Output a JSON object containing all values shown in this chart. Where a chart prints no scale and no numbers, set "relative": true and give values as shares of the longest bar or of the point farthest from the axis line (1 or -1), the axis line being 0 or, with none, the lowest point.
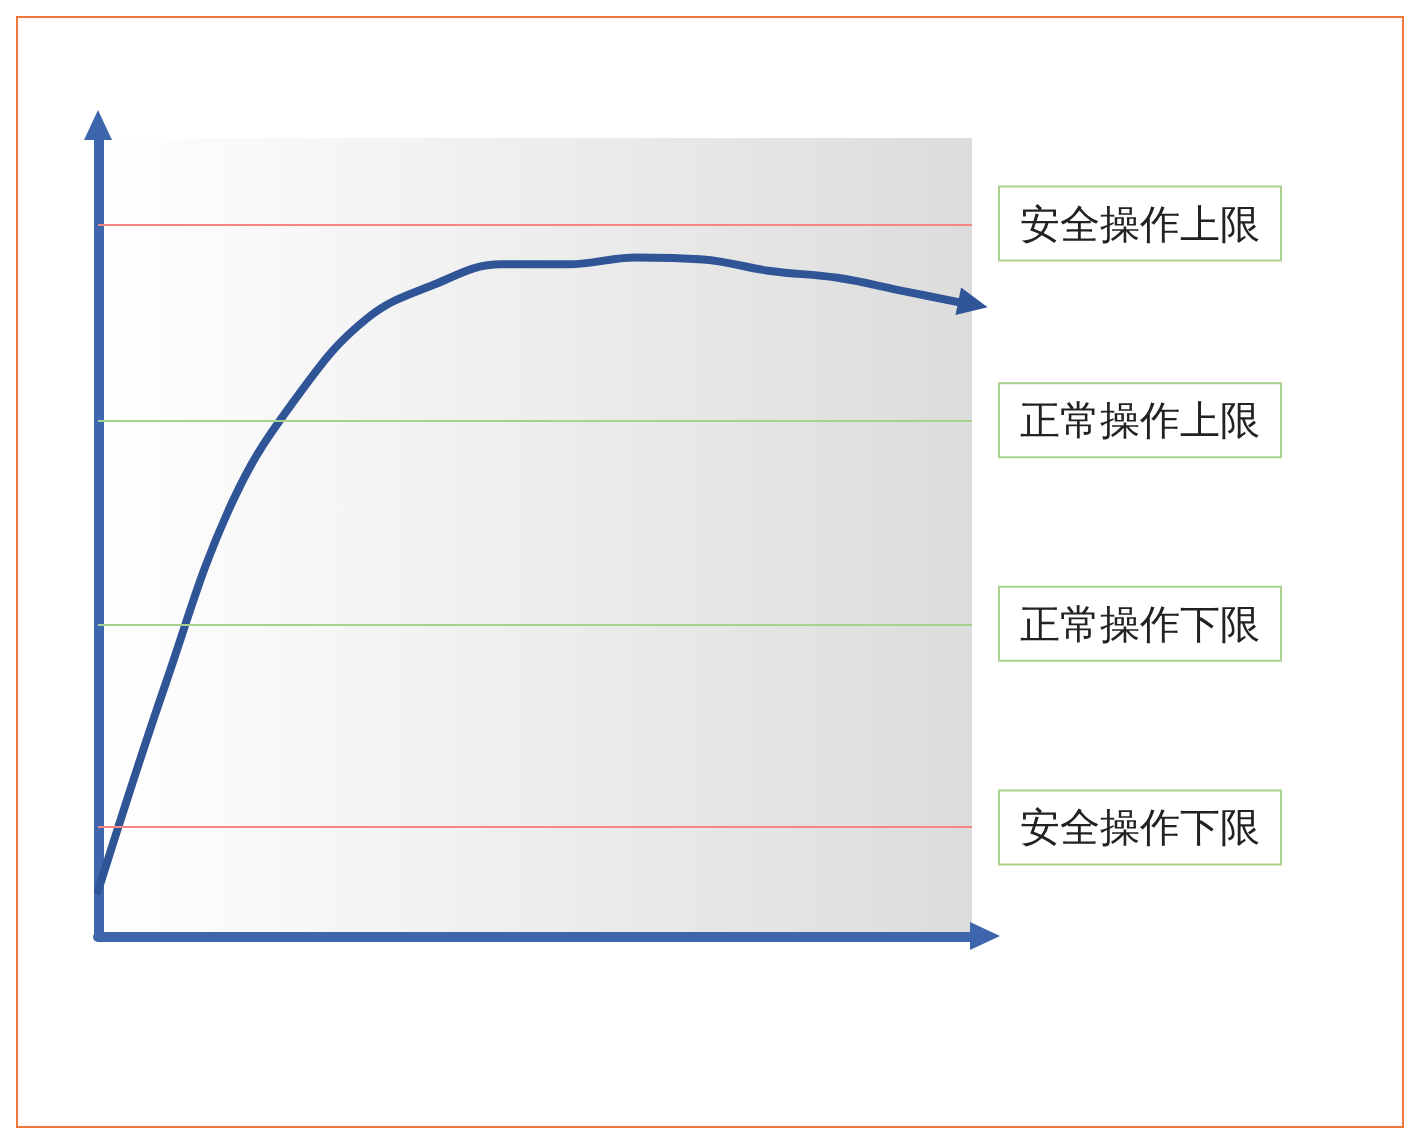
{
  "chart_data": {
    "type": "line",
    "relative": true,
    "categories": [
      null,
      null,
      null,
      null,
      null,
      null,
      null,
      null,
      null,
      null,
      null,
      null,
      null,
      null
    ],
    "series": [
      {
        "color": "#2f5597",
        "values": [
          0.066,
          0.37,
          0.64,
          0.8,
          0.91,
          0.96,
          0.99,
          0.99,
          1.0,
          0.997,
          0.98,
          0.97,
          0.95,
          0.93
        ]
      }
    ],
    "ref_lines": [
      {
        "axis": "y",
        "value": 1.05,
        "label": "安全操作上限",
        "color": "#f4877f"
      },
      {
        "axis": "y",
        "value": 0.76,
        "label": "正常操作上限",
        "color": "#a9d18e"
      },
      {
        "axis": "y",
        "value": 0.46,
        "label": "正常操作下限",
        "color": "#a9d18e"
      },
      {
        "axis": "y",
        "value": 0.16,
        "label": "安全操作下限",
        "color": "#f4877f"
      }
    ],
    "grid": false
  }
}
